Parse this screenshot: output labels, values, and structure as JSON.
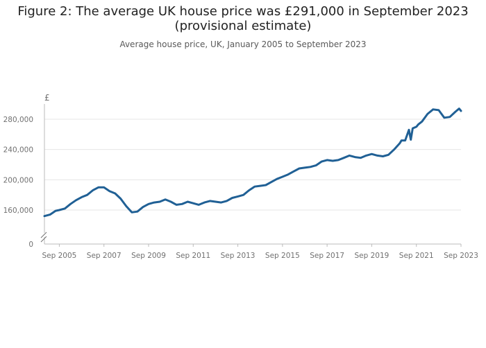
{
  "chart_data": {
    "type": "line",
    "title": "Figure 2: The average UK house price was £291,000 in September 2023 (provisional estimate)",
    "title_lines": [
      "Figure 2: The average UK house price was £291,000 in September 2023",
      "(provisional estimate)"
    ],
    "subtitle": "Average house price, UK, January 2005 to September 2023",
    "y_unit": "£",
    "ylim": [
      140000,
      300000
    ],
    "y_ticks": [
      160000,
      200000,
      240000,
      280000
    ],
    "y_tick_labels": [
      "160,000",
      "200,000",
      "240,000",
      "280,000"
    ],
    "y_zero_label": "0",
    "axis_break": true,
    "x_ticks": [
      "Sep 2005",
      "Sep 2007",
      "Sep 2009",
      "Sep 2011",
      "Sep 2013",
      "Sep 2015",
      "Sep 2017",
      "Sep 2019",
      "Sep 2021",
      "Sep 2023"
    ],
    "grid": true,
    "color": "#206095",
    "series": [
      {
        "x": [
          "2005-01",
          "2005-04",
          "2005-07",
          "2005-09",
          "2005-12",
          "2006-03",
          "2006-06",
          "2006-09",
          "2006-12",
          "2007-03",
          "2007-06",
          "2007-09",
          "2007-12",
          "2008-03",
          "2008-06",
          "2008-09",
          "2008-12",
          "2009-03",
          "2009-06",
          "2009-09",
          "2009-12",
          "2010-03",
          "2010-06",
          "2010-09",
          "2010-12",
          "2011-03",
          "2011-06",
          "2011-09",
          "2011-12",
          "2012-03",
          "2012-06",
          "2012-09",
          "2012-12",
          "2013-03",
          "2013-06",
          "2013-09",
          "2013-12",
          "2014-03",
          "2014-06",
          "2014-09",
          "2014-12",
          "2015-03",
          "2015-06",
          "2015-09",
          "2015-12",
          "2016-03",
          "2016-06",
          "2016-09",
          "2016-12",
          "2017-03",
          "2017-06",
          "2017-09",
          "2017-12",
          "2018-03",
          "2018-06",
          "2018-09",
          "2018-12",
          "2019-03",
          "2019-06",
          "2019-09",
          "2019-12",
          "2020-03",
          "2020-06",
          "2020-09",
          "2020-12",
          "2021-01",
          "2021-03",
          "2021-05",
          "2021-06",
          "2021-07",
          "2021-09",
          "2021-10",
          "2021-12",
          "2022-03",
          "2022-06",
          "2022-09",
          "2022-12",
          "2023-03",
          "2023-06",
          "2023-08",
          "2023-09"
        ],
        "values": [
          152000,
          154000,
          159000,
          160000,
          162000,
          168000,
          173000,
          177000,
          180000,
          186000,
          190000,
          190000,
          185000,
          182000,
          175000,
          165000,
          157000,
          158000,
          164000,
          168000,
          170000,
          171000,
          174000,
          171000,
          167000,
          168000,
          171000,
          169000,
          167000,
          170000,
          172000,
          171000,
          170000,
          172000,
          176000,
          178000,
          180000,
          186000,
          191000,
          192000,
          193000,
          197000,
          201000,
          204000,
          207000,
          211000,
          215000,
          216000,
          217000,
          219000,
          224000,
          226000,
          225000,
          226000,
          229000,
          232000,
          230000,
          229000,
          232000,
          234000,
          232000,
          231000,
          233000,
          240000,
          248000,
          252000,
          252000,
          266000,
          253000,
          268000,
          270000,
          273000,
          277000,
          287000,
          293000,
          292000,
          282000,
          283000,
          290000,
          294000,
          291000
        ]
      }
    ]
  }
}
